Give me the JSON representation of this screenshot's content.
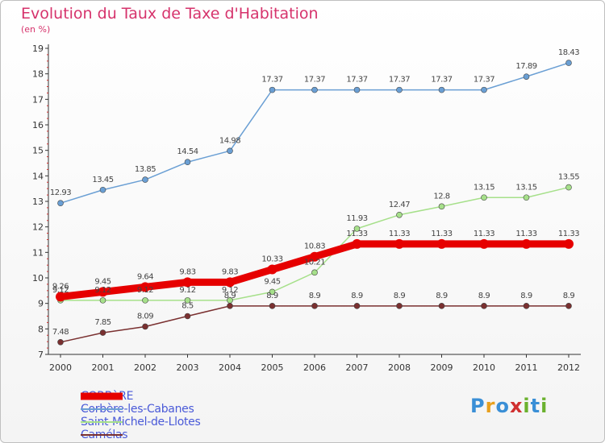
{
  "header": {
    "title": "Evolution du Taux de Taxe d'Habitation",
    "subtitle": "(en %)"
  },
  "logo": {
    "text": "Proxiti",
    "colors": [
      "#3a8fd6",
      "#e8a01e",
      "#3a8fd6",
      "#d03030",
      "#6bb12e",
      "#3a8fd6",
      "#6bb12e"
    ]
  },
  "chart_data": {
    "type": "line",
    "title": "Evolution du Taux de Taxe d'Habitation",
    "subtitle": "(en %)",
    "x": [
      "2000",
      "2001",
      "2002",
      "2003",
      "2004",
      "2005",
      "2006",
      "2007",
      "2008",
      "2009",
      "2010",
      "2011",
      "2012"
    ],
    "ylim": [
      7,
      19
    ],
    "yticks": [
      "7",
      "8",
      "9",
      "10",
      "11",
      "12",
      "13",
      "14",
      "15",
      "16",
      "17",
      "18",
      "19"
    ],
    "grid": false,
    "legend_position": "bottom-left",
    "series": [
      {
        "name": "CORBèRE",
        "color": "#e60000",
        "width": "thick",
        "values": [
          9.26,
          9.45,
          9.64,
          9.83,
          9.83,
          10.33,
          10.83,
          11.33,
          11.33,
          11.33,
          11.33,
          11.33,
          11.33
        ],
        "labels": [
          "9.26",
          "9.45",
          "9.64",
          "9.83",
          "9.83",
          "10.33",
          "10.83",
          "11.33",
          "11.33",
          "11.33",
          "11.33",
          "11.33",
          "11.33"
        ]
      },
      {
        "name": "Corbère-les-Cabanes",
        "color": "#6a9fd4",
        "width": "thin",
        "values": [
          12.93,
          13.45,
          13.85,
          14.54,
          14.98,
          17.37,
          17.37,
          17.37,
          17.37,
          17.37,
          17.37,
          17.89,
          18.43
        ],
        "labels": [
          "12.93",
          "13.45",
          "13.85",
          "14.54",
          "14.98",
          "17.37",
          "17.37",
          "17.37",
          "17.37",
          "17.37",
          "17.37",
          "17.89",
          "18.43"
        ]
      },
      {
        "name": "Saint-Michel-de-Llotes",
        "color": "#a6e08a",
        "width": "thin",
        "values": [
          9.12,
          9.12,
          9.12,
          9.12,
          9.12,
          9.45,
          10.21,
          11.93,
          12.47,
          12.8,
          13.15,
          13.15,
          13.55
        ],
        "labels": [
          "9.12",
          "9.12",
          "9.12",
          "9.12",
          "9.12",
          "9.45",
          "10.21",
          "11.93",
          "12.47",
          "12.8",
          "13.15",
          "13.15",
          "13.55"
        ]
      },
      {
        "name": "Camélas",
        "color": "#7a3030",
        "width": "thin",
        "values": [
          7.48,
          7.85,
          8.09,
          8.5,
          8.9,
          8.9,
          8.9,
          8.9,
          8.9,
          8.9,
          8.9,
          8.9,
          8.9
        ],
        "labels": [
          "7.48",
          "7.85",
          "8.09",
          "8.5",
          "8.9",
          "8.9",
          "8.9",
          "8.9",
          "8.9",
          "8.9",
          "8.9",
          "8.9",
          "8.9"
        ]
      }
    ]
  }
}
